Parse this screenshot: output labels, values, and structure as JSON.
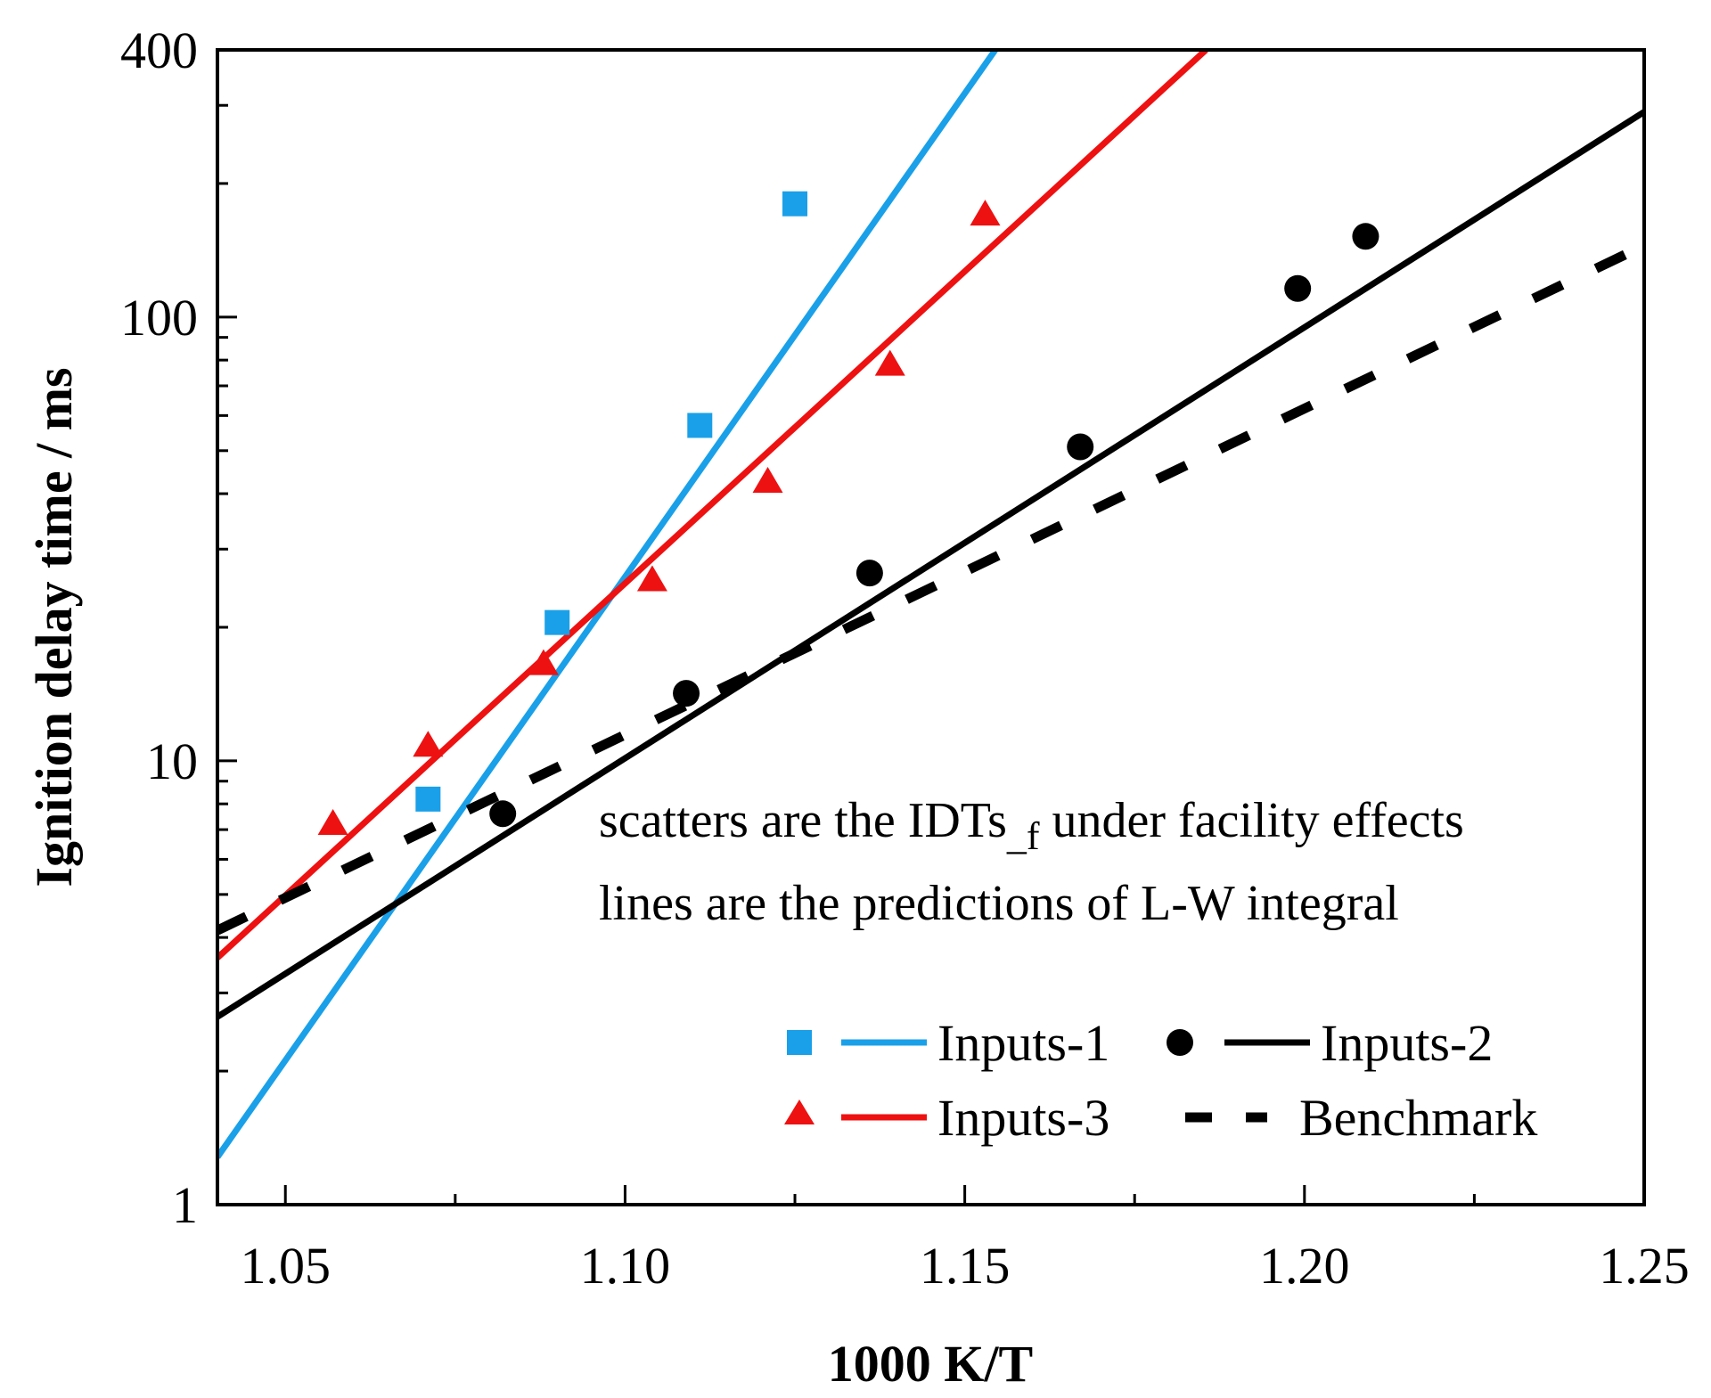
{
  "chart_data": {
    "type": "scatter",
    "title": "",
    "xlabel": "1000 K/T",
    "ylabel": "Ignition delay time / ms",
    "xlim": [
      1.04,
      1.25
    ],
    "ylim": [
      1,
      400
    ],
    "yscale": "log",
    "x_ticks": [
      "1.05",
      "1.10",
      "1.15",
      "1.20",
      "1.25"
    ],
    "x_tick_values": [
      1.05,
      1.1,
      1.15,
      1.2,
      1.25
    ],
    "y_ticks": [
      "1",
      "10",
      "100",
      "400"
    ],
    "y_tick_values": [
      1,
      10,
      100,
      400
    ],
    "annotations": {
      "line1_pre": "scatters are the IDTs",
      "line1_sub": "_f",
      "line1_post": " under facility effects",
      "line2": "lines are the predictions of L-W integral"
    },
    "series": [
      {
        "name": "Inputs-1",
        "color": "#1aa0e8",
        "marker": "square",
        "points": [
          [
            1.071,
            8.2
          ],
          [
            1.09,
            20.5
          ],
          [
            1.111,
            57
          ],
          [
            1.125,
            180
          ]
        ],
        "line": [
          [
            1.04,
            1.28
          ],
          [
            1.1545,
            400
          ]
        ]
      },
      {
        "name": "Inputs-2",
        "color": "#000000",
        "marker": "circle",
        "points": [
          [
            1.082,
            7.6
          ],
          [
            1.109,
            14.2
          ],
          [
            1.136,
            26.5
          ],
          [
            1.167,
            51
          ],
          [
            1.199,
            116
          ],
          [
            1.209,
            152
          ]
        ],
        "line": [
          [
            1.04,
            2.65
          ],
          [
            1.25,
            290
          ]
        ]
      },
      {
        "name": "Inputs-3",
        "color": "#ee1111",
        "marker": "triangle",
        "points": [
          [
            1.057,
            7.2
          ],
          [
            1.071,
            10.8
          ],
          [
            1.088,
            16.5
          ],
          [
            1.104,
            25.5
          ],
          [
            1.121,
            42.5
          ],
          [
            1.139,
            78
          ],
          [
            1.153,
            170
          ]
        ],
        "line": [
          [
            1.04,
            3.6
          ],
          [
            1.1855,
            400
          ]
        ]
      },
      {
        "name": "Benchmark",
        "color": "#000000",
        "marker": "none",
        "style": "dashed",
        "line": [
          [
            1.04,
            4.15
          ],
          [
            1.25,
            145
          ]
        ]
      }
    ],
    "legend_position": "lower-right"
  }
}
